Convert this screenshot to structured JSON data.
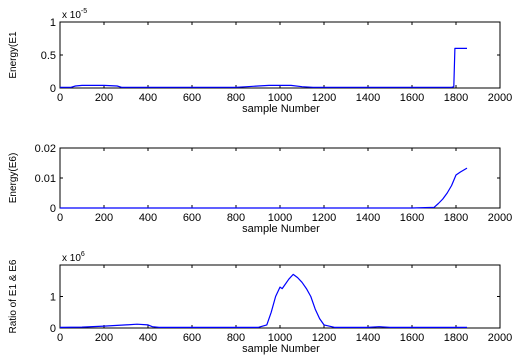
{
  "chart_data": [
    {
      "type": "line",
      "ylabel": "Energy(E1",
      "xlabel": "sample Number",
      "exponent_label": {
        "base": "x 10",
        "power": "-5"
      },
      "xlim": [
        0,
        2000
      ],
      "ylim": [
        0,
        1
      ],
      "x_ticks": [
        0,
        200,
        400,
        600,
        800,
        1000,
        1200,
        1400,
        1600,
        1800,
        2000
      ],
      "x_tick_labels": [
        "0",
        "200",
        "400",
        "600",
        "800",
        "1000",
        "1200",
        "1400",
        "1600",
        "1800",
        "2000"
      ],
      "y_ticks": [
        0,
        0.5,
        1
      ],
      "y_tick_labels": [
        "0",
        "0.5",
        "1"
      ],
      "grid": false,
      "color": "#0000ff",
      "series": [
        {
          "x": [
            0,
            50,
            70,
            100,
            150,
            200,
            260,
            280,
            300,
            400,
            500,
            600,
            700,
            800,
            850,
            900,
            950,
            1000,
            1050,
            1100,
            1150,
            1200,
            1300,
            1400,
            1500,
            1600,
            1700,
            1780,
            1790,
            1795,
            1800,
            1850
          ],
          "y": [
            0.01,
            0.01,
            0.03,
            0.04,
            0.04,
            0.04,
            0.03,
            0.01,
            0.01,
            0.01,
            0.01,
            0.01,
            0.01,
            0.01,
            0.02,
            0.03,
            0.04,
            0.04,
            0.04,
            0.02,
            0.01,
            0.01,
            0.01,
            0.01,
            0.01,
            0.01,
            0.01,
            0.01,
            0.02,
            0.6,
            0.6,
            0.6
          ]
        }
      ]
    },
    {
      "type": "line",
      "ylabel": "Energy(E6)",
      "xlabel": "sample Number",
      "xlim": [
        0,
        2000
      ],
      "ylim": [
        0,
        0.02
      ],
      "x_ticks": [
        0,
        200,
        400,
        600,
        800,
        1000,
        1200,
        1400,
        1600,
        1800,
        2000
      ],
      "x_tick_labels": [
        "0",
        "200",
        "400",
        "600",
        "800",
        "1000",
        "1200",
        "1400",
        "1600",
        "1800",
        "2000"
      ],
      "y_ticks": [
        0,
        0.01,
        0.02
      ],
      "y_tick_labels": [
        "0",
        "0.01",
        "0.02"
      ],
      "grid": false,
      "color": "#0000ff",
      "series": [
        {
          "x": [
            0,
            200,
            400,
            600,
            800,
            1000,
            1200,
            1400,
            1600,
            1700,
            1720,
            1740,
            1760,
            1780,
            1800,
            1820,
            1850
          ],
          "y": [
            0,
            0,
            0,
            0,
            0,
            0,
            0,
            0,
            0,
            0.0002,
            0.0015,
            0.003,
            0.005,
            0.0075,
            0.011,
            0.012,
            0.0133
          ]
        }
      ]
    },
    {
      "type": "line",
      "ylabel": "Ratio of E1 & E6",
      "xlabel": "sample Number",
      "exponent_label": {
        "base": "x 10",
        "power": "6"
      },
      "xlim": [
        0,
        2000
      ],
      "ylim": [
        0,
        2
      ],
      "x_ticks": [
        0,
        200,
        400,
        600,
        800,
        1000,
        1200,
        1400,
        1600,
        1800,
        2000
      ],
      "x_tick_labels": [
        "0",
        "200",
        "400",
        "600",
        "800",
        "1000",
        "1200",
        "1400",
        "1600",
        "1800",
        "2000"
      ],
      "y_ticks": [
        0,
        1
      ],
      "y_tick_labels": [
        "0",
        "1"
      ],
      "grid": false,
      "color": "#0000ff",
      "series": [
        {
          "x": [
            0,
            100,
            200,
            300,
            350,
            400,
            420,
            450,
            500,
            600,
            700,
            800,
            900,
            940,
            960,
            980,
            1000,
            1010,
            1020,
            1040,
            1060,
            1080,
            1100,
            1120,
            1140,
            1160,
            1180,
            1200,
            1250,
            1400,
            1450,
            1500,
            1600,
            1700,
            1800,
            1850
          ],
          "y": [
            0.02,
            0.03,
            0.06,
            0.1,
            0.12,
            0.1,
            0.04,
            0.02,
            0.02,
            0.02,
            0.02,
            0.02,
            0.02,
            0.1,
            0.5,
            1.0,
            1.3,
            1.25,
            1.35,
            1.55,
            1.7,
            1.6,
            1.45,
            1.25,
            1.0,
            0.6,
            0.3,
            0.1,
            0.02,
            0.02,
            0.04,
            0.02,
            0.02,
            0.02,
            0.02,
            0.02
          ]
        }
      ]
    }
  ]
}
